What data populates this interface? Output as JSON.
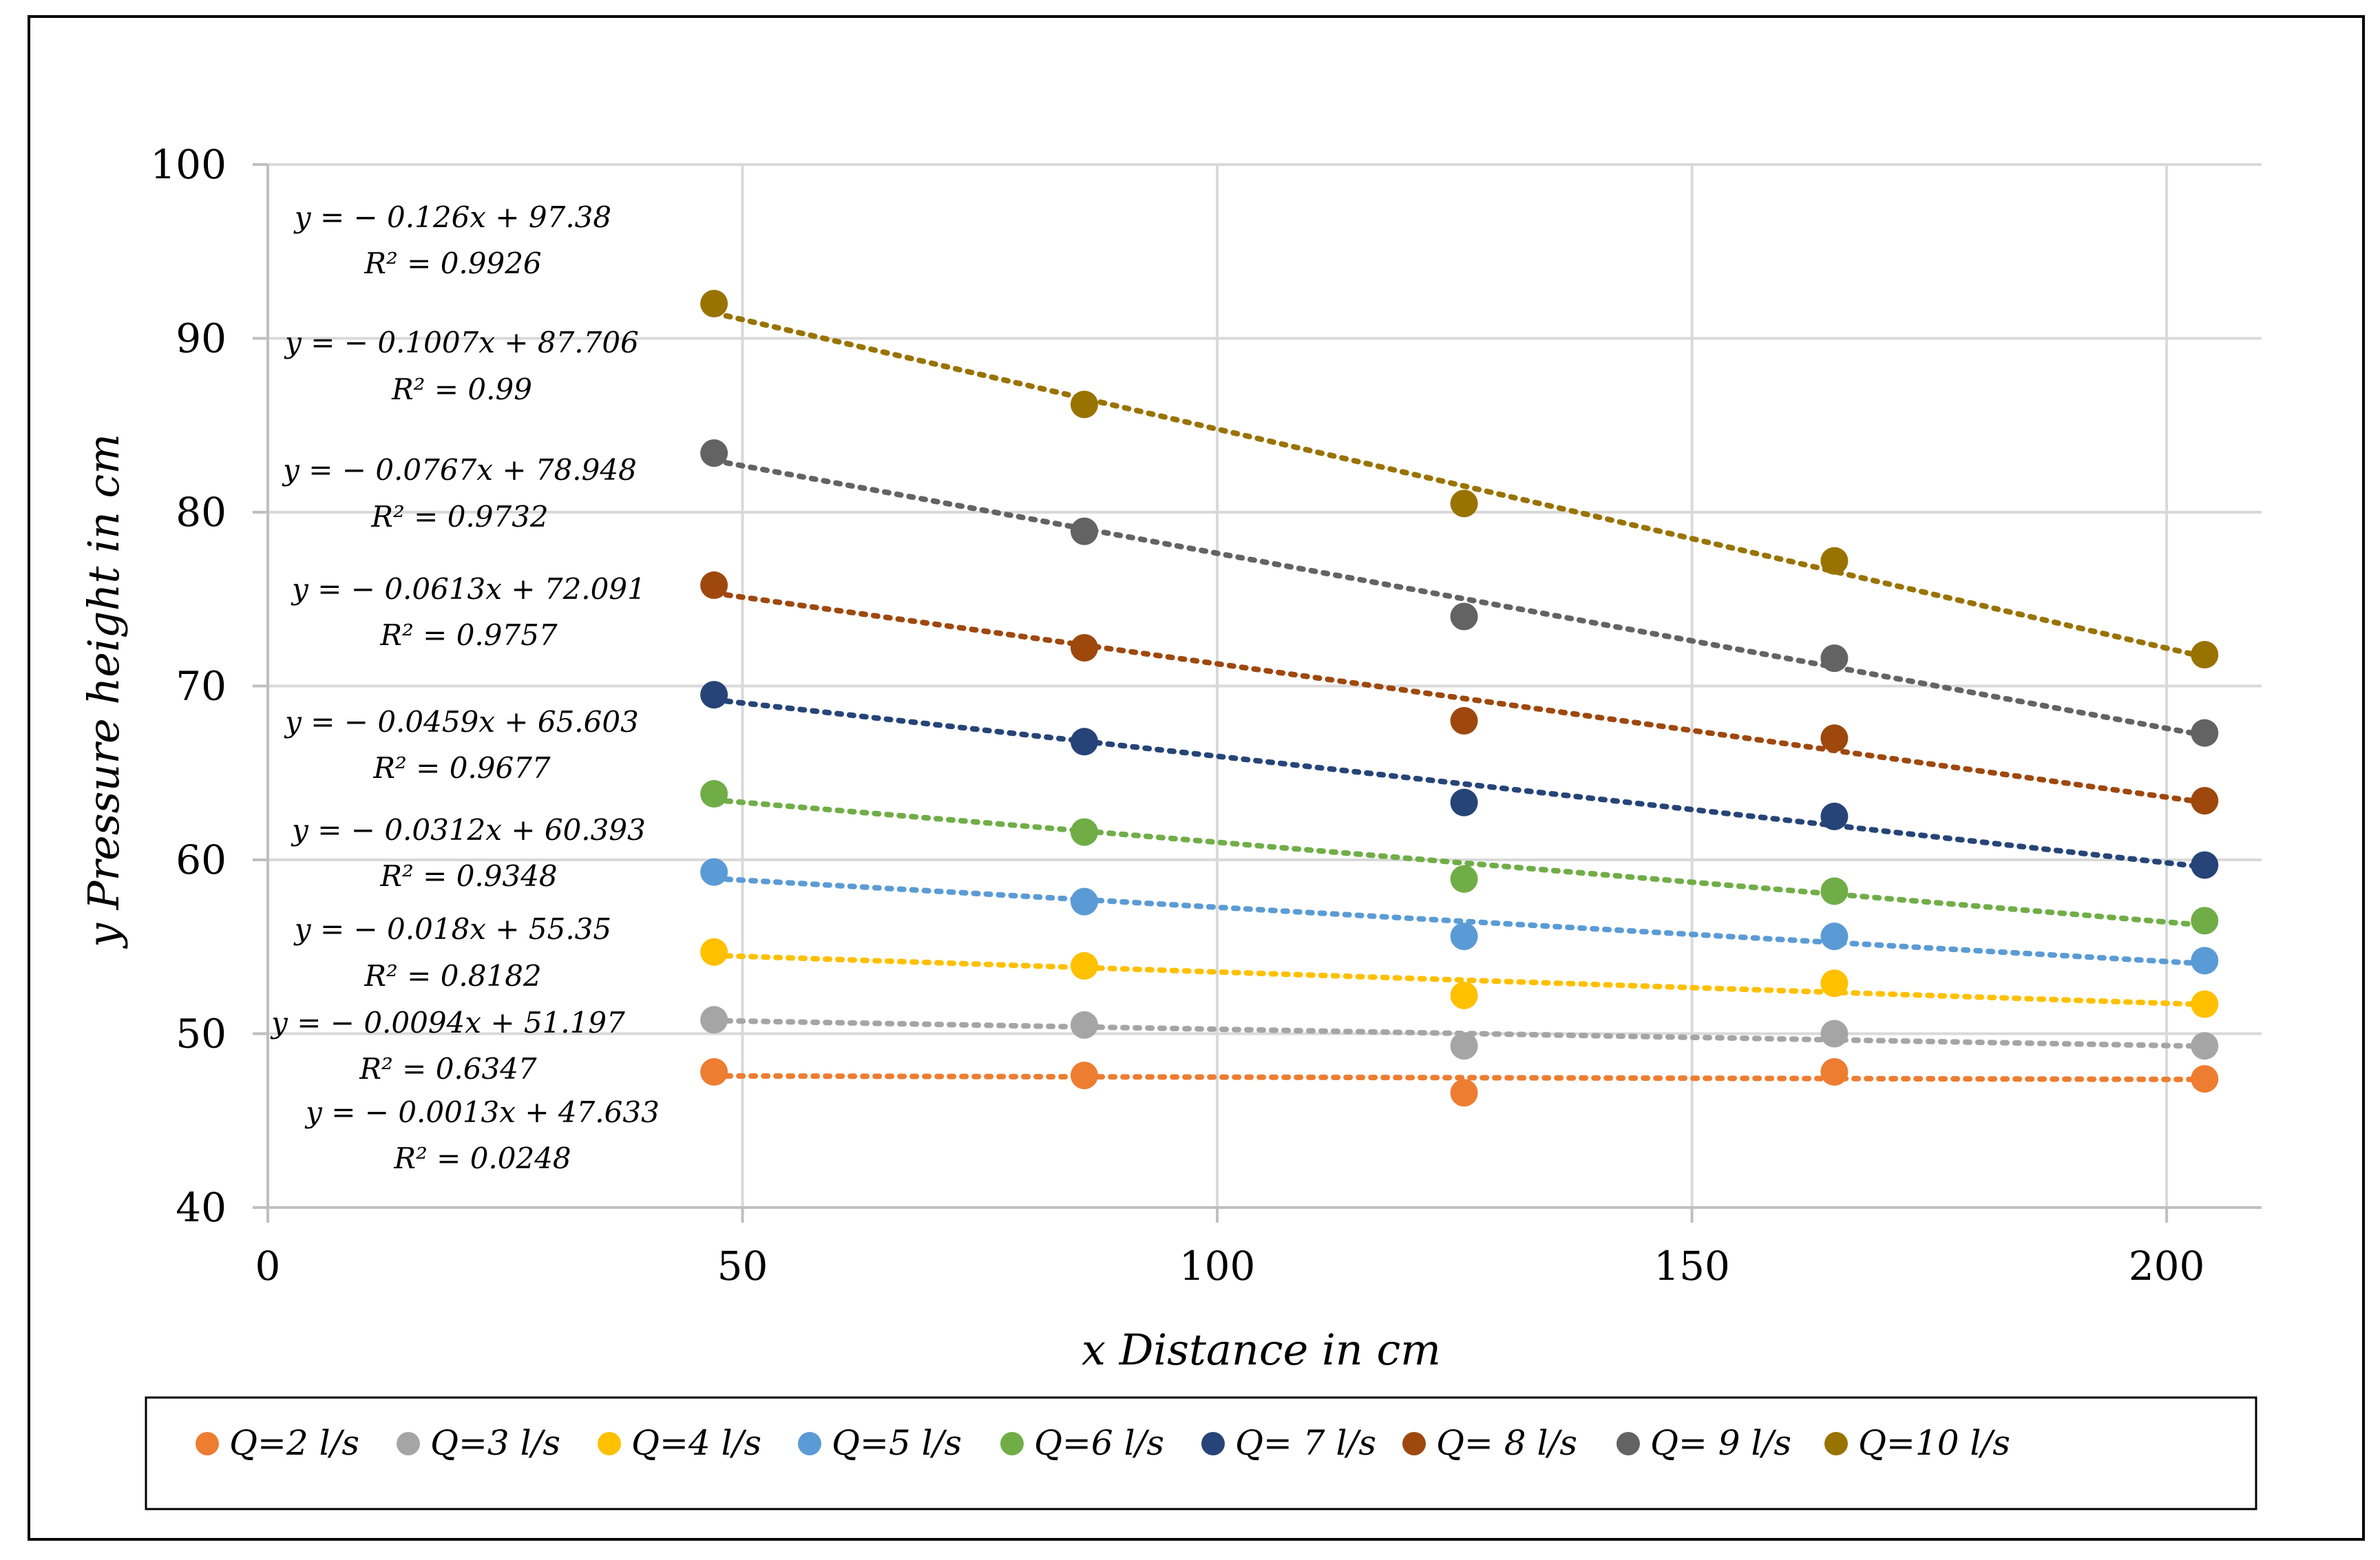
{
  "chart_data": {
    "type": "scatter",
    "xlabel": "x Distance in cm",
    "ylabel": "y Pressure height in cm",
    "xlim": [
      0,
      210
    ],
    "ylim": [
      40,
      100
    ],
    "xticks": [
      "0",
      "50",
      "100",
      "150",
      "200"
    ],
    "xtick_values": [
      0,
      50,
      100,
      150,
      200
    ],
    "yticks": [
      "40",
      "50",
      "60",
      "70",
      "80",
      "90",
      "100"
    ],
    "ytick_values": [
      40,
      50,
      60,
      70,
      80,
      90,
      100
    ],
    "grid": true,
    "legend_position": "bottom",
    "x": [
      47,
      86,
      126,
      165,
      204
    ],
    "series": [
      {
        "name": "Q=2 l/s",
        "color": "#ED7D31",
        "values": [
          47.8,
          47.6,
          46.6,
          47.8,
          47.4
        ],
        "trendline": {
          "slope": -0.0013,
          "intercept": 47.633
        },
        "equation": "y = − 0.0013x + 47.633",
        "r2": "R² = 0.0248"
      },
      {
        "name": "Q=3 l/s",
        "color": "#A5A5A5",
        "values": [
          50.8,
          50.5,
          49.3,
          50.0,
          49.3
        ],
        "trendline": {
          "slope": -0.0094,
          "intercept": 51.197
        },
        "equation": "y = − 0.0094x + 51.197",
        "r2": "R² = 0.6347"
      },
      {
        "name": "Q=4 l/s",
        "color": "#FFC000",
        "values": [
          54.7,
          53.9,
          52.2,
          52.9,
          51.7
        ],
        "trendline": {
          "slope": -0.018,
          "intercept": 55.35
        },
        "equation": "y = − 0.018x + 55.35",
        "r2": "R² = 0.8182"
      },
      {
        "name": "Q=5 l/s",
        "color": "#5B9BD5",
        "values": [
          59.3,
          57.6,
          55.6,
          55.6,
          54.2
        ],
        "trendline": {
          "slope": -0.0312,
          "intercept": 60.393
        },
        "equation": "y = − 0.0312x + 60.393",
        "r2": "R² = 0.9348"
      },
      {
        "name": "Q=6 l/s",
        "color": "#70AD47",
        "values": [
          63.8,
          61.6,
          58.9,
          58.2,
          56.5
        ],
        "trendline": {
          "slope": -0.0459,
          "intercept": 65.603
        },
        "equation": "y = − 0.0459x + 65.603",
        "r2": "R² = 0.9677"
      },
      {
        "name": "Q= 7 l/s",
        "color": "#264478",
        "values": [
          69.5,
          66.8,
          63.3,
          62.5,
          59.7
        ],
        "trendline": {
          "slope": -0.0613,
          "intercept": 72.091
        },
        "equation": "y = − 0.0613x + 72.091",
        "r2": "R² = 0.9757"
      },
      {
        "name": "Q= 8 l/s",
        "color": "#9E480E",
        "values": [
          75.8,
          72.2,
          68.0,
          67.0,
          63.4
        ],
        "trendline": {
          "slope": -0.0767,
          "intercept": 78.948
        },
        "equation": "y = − 0.0767x + 78.948",
        "r2": "R² = 0.9732"
      },
      {
        "name": "Q= 9 l/s",
        "color": "#636363",
        "values": [
          83.4,
          78.9,
          74.0,
          71.6,
          67.3
        ],
        "trendline": {
          "slope": -0.1007,
          "intercept": 87.706
        },
        "equation": "y = − 0.1007x + 87.706",
        "r2": "R² = 0.99"
      },
      {
        "name": "Q=10 l/s",
        "color": "#997300",
        "values": [
          92.0,
          86.2,
          80.5,
          77.2,
          71.8
        ],
        "trendline": {
          "slope": -0.126,
          "intercept": 97.38
        },
        "equation": "y = − 0.126x + 97.38",
        "r2": "R² = 0.9926"
      }
    ]
  }
}
